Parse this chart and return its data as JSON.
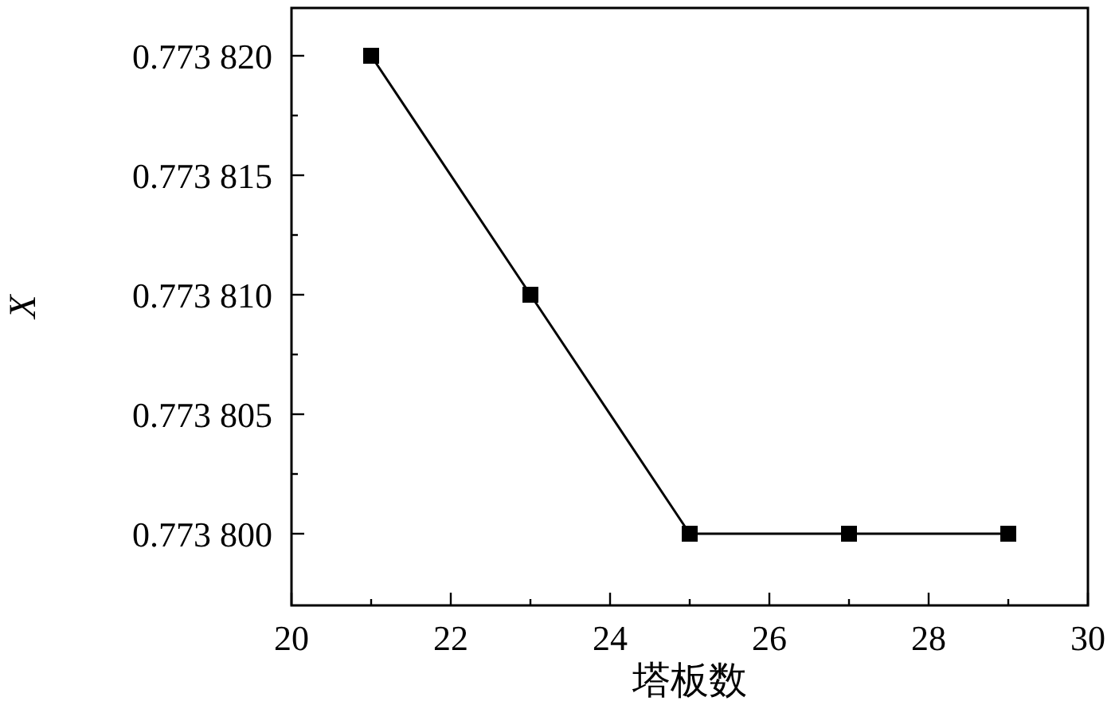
{
  "chart_data": {
    "type": "line",
    "xlabel": "塔板数",
    "ylabel": "X",
    "x": [
      21,
      23,
      25,
      27,
      29
    ],
    "values": [
      0.77382,
      0.77381,
      0.7738,
      0.7738,
      0.7738
    ],
    "color": "#000000",
    "marker": "square",
    "line_style": "solid",
    "xlim": [
      20,
      30
    ],
    "ylim": [
      0.773797,
      0.773822
    ],
    "xticks": [
      20,
      22,
      24,
      26,
      28,
      30
    ],
    "yticks": [
      {
        "value": 0.7738,
        "label": "0.773 800"
      },
      {
        "value": 0.773805,
        "label": "0.773 805"
      },
      {
        "value": 0.77381,
        "label": "0.773 810"
      },
      {
        "value": 0.773815,
        "label": "0.773 815"
      },
      {
        "value": 0.77382,
        "label": "0.773 820"
      }
    ]
  }
}
